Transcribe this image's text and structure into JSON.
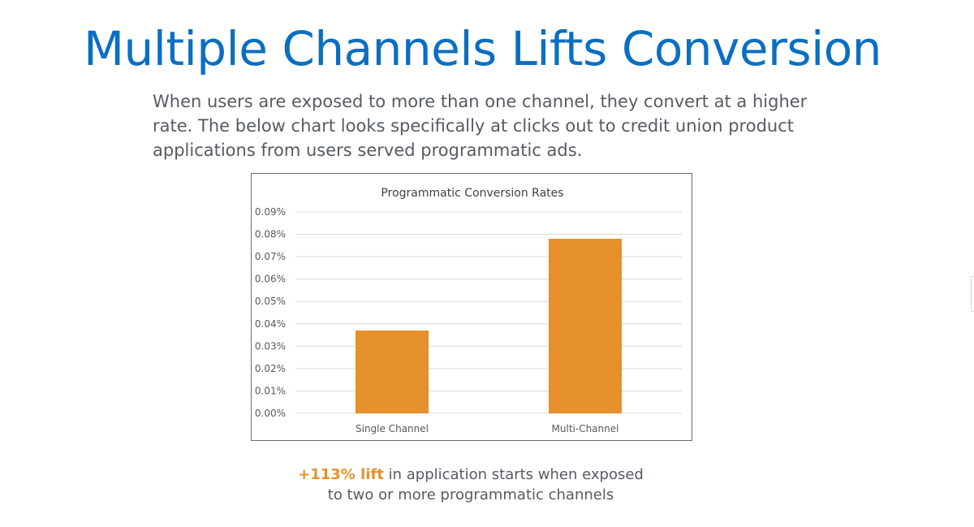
{
  "slide": {
    "title": "Multiple Channels Lifts Conversion",
    "intro": "When users are exposed to more than one channel, they convert at a higher rate. The below chart looks specifically at clicks out to credit union product applications from users served programmatic ads.",
    "footer": {
      "highlight": "+113% lift",
      "rest_line1": " in application starts when exposed",
      "line2": "to two or more programmatic channels"
    }
  },
  "colors": {
    "title": "#0a6fc2",
    "body_text": "#555b61",
    "bar": "#e5902a",
    "highlight": "#e5902a",
    "gridline": "#d9d9d9"
  },
  "chart_data": {
    "type": "bar",
    "title": "Programmatic Conversion Rates",
    "categories": [
      "Single Channel",
      "Multi-Channel"
    ],
    "values": [
      0.037,
      0.078
    ],
    "unit": "%",
    "ylim": [
      0,
      0.09
    ],
    "yticks": [
      "0.00%",
      "0.01%",
      "0.02%",
      "0.03%",
      "0.04%",
      "0.05%",
      "0.06%",
      "0.07%",
      "0.08%",
      "0.09%"
    ],
    "grid": true,
    "legend": "none"
  }
}
